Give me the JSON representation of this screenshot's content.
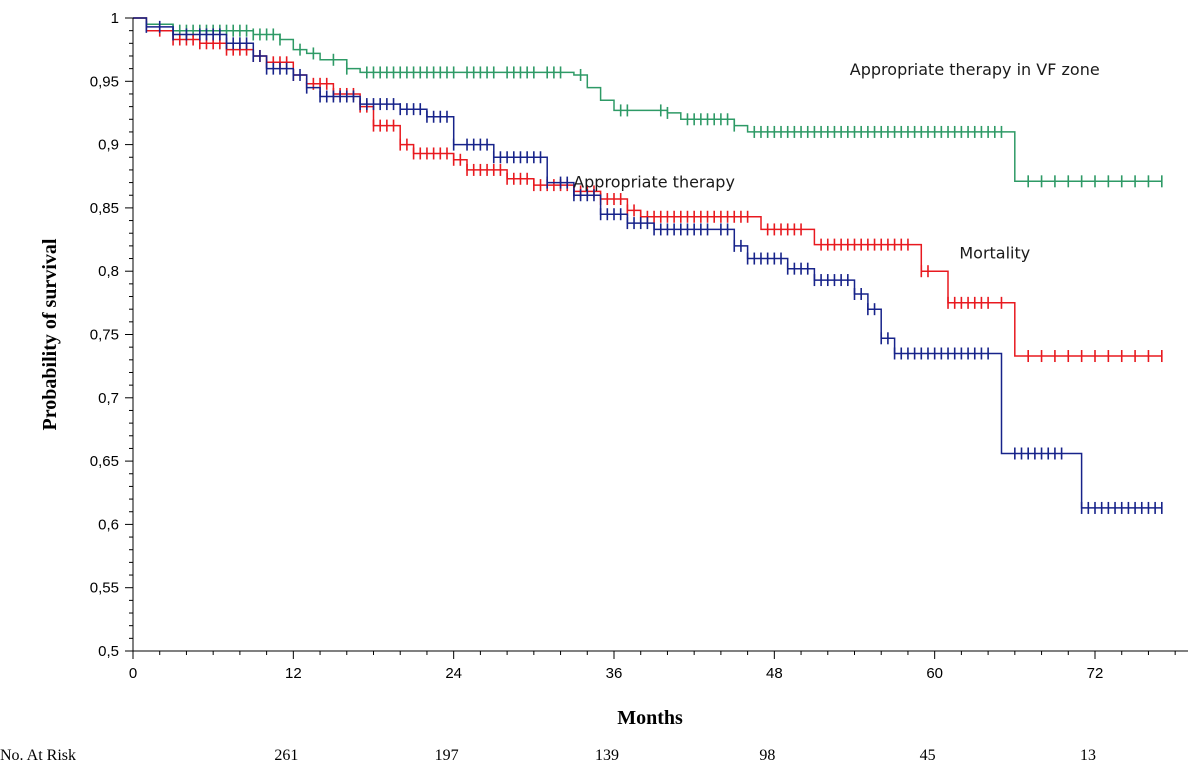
{
  "chart_data": {
    "type": "line",
    "title": "",
    "xlabel": "Months",
    "ylabel": "Probability of survival",
    "xlim": [
      0,
      78
    ],
    "ylim": [
      0.5,
      1
    ],
    "x_ticks": [
      0,
      12,
      24,
      36,
      48,
      60,
      72
    ],
    "x_tick_labels": [
      "0",
      "12",
      "24",
      "36",
      "48",
      "60",
      "72"
    ],
    "y_ticks": [
      0.5,
      0.55,
      0.6,
      0.65,
      0.7,
      0.75,
      0.8,
      0.85,
      0.9,
      0.95,
      1
    ],
    "y_tick_labels": [
      "0,5",
      "0,55",
      "0,6",
      "0,65",
      "0,7",
      "0,75",
      "0,8",
      "0,85",
      "0,9",
      "0,95",
      "1"
    ],
    "grid": false,
    "series": [
      {
        "name": "Appropriate therapy in VF zone",
        "color": "#2e9a66",
        "label_anchor": [
          63,
          0.955
        ],
        "steps": [
          [
            0,
            1
          ],
          [
            1,
            0.995
          ],
          [
            3,
            0.99
          ],
          [
            9,
            0.987
          ],
          [
            11,
            0.983
          ],
          [
            12,
            0.975
          ],
          [
            13,
            0.972
          ],
          [
            14,
            0.967
          ],
          [
            16,
            0.96
          ],
          [
            17,
            0.957
          ],
          [
            33,
            0.955
          ],
          [
            34,
            0.945
          ],
          [
            35,
            0.935
          ],
          [
            36,
            0.927
          ],
          [
            40,
            0.925
          ],
          [
            41,
            0.92
          ],
          [
            45,
            0.915
          ],
          [
            46,
            0.91
          ],
          [
            66,
            0.91
          ],
          [
            66,
            0.871
          ],
          [
            77,
            0.871
          ]
        ],
        "censor_ticks": [
          3,
          3.5,
          4,
          4.5,
          5,
          5.5,
          6,
          6.5,
          7,
          7.5,
          8,
          8.5,
          9,
          9.5,
          10,
          10.5,
          11,
          12.5,
          13.5,
          15,
          16,
          17.5,
          18,
          18.5,
          19,
          19.5,
          20,
          20.5,
          21,
          21.5,
          22,
          22.5,
          23,
          23.5,
          24,
          25,
          25.5,
          26,
          26.5,
          27,
          28,
          28.5,
          29,
          29.5,
          30,
          31,
          31.5,
          32,
          33.5,
          36.5,
          37,
          39.5,
          40,
          41.5,
          42,
          42.5,
          43,
          43.5,
          44,
          44.5,
          45,
          46.5,
          47,
          47.5,
          48,
          48.5,
          49,
          49.5,
          50,
          50.5,
          51,
          51.5,
          52,
          52.5,
          53,
          53.5,
          54,
          54.5,
          55,
          55.5,
          56,
          56.5,
          57,
          57.5,
          58,
          58.5,
          59,
          59.5,
          60,
          60.5,
          61,
          61.5,
          62,
          62.5,
          63,
          63.5,
          64,
          64.5,
          65,
          67,
          68,
          69,
          70,
          71,
          72,
          73,
          74,
          75,
          76,
          77
        ]
      },
      {
        "name": "Appropriate therapy",
        "color": "#e8191f",
        "label_anchor": [
          39,
          0.866
        ],
        "steps": [
          [
            0,
            1
          ],
          [
            1,
            0.99
          ],
          [
            3,
            0.983
          ],
          [
            5,
            0.98
          ],
          [
            7,
            0.975
          ],
          [
            9,
            0.97
          ],
          [
            10,
            0.965
          ],
          [
            12,
            0.955
          ],
          [
            13,
            0.948
          ],
          [
            15,
            0.94
          ],
          [
            17,
            0.93
          ],
          [
            18,
            0.915
          ],
          [
            20,
            0.9
          ],
          [
            21,
            0.893
          ],
          [
            24,
            0.888
          ],
          [
            25,
            0.88
          ],
          [
            28,
            0.873
          ],
          [
            30,
            0.868
          ],
          [
            33,
            0.863
          ],
          [
            35,
            0.857
          ],
          [
            37,
            0.848
          ],
          [
            38,
            0.843
          ],
          [
            47,
            0.833
          ],
          [
            51,
            0.821
          ],
          [
            59,
            0.8
          ],
          [
            60,
            0.8
          ],
          [
            61,
            0.775
          ],
          [
            66,
            0.775
          ],
          [
            66,
            0.733
          ],
          [
            77,
            0.733
          ]
        ],
        "censor_ticks": [
          2,
          3,
          3.5,
          4,
          4.5,
          5,
          5.5,
          6,
          6.5,
          7,
          7.5,
          8,
          8.5,
          9,
          9.5,
          10,
          10.5,
          11,
          11.5,
          12,
          13,
          13.5,
          14,
          14.5,
          15,
          15.5,
          16,
          16.5,
          17,
          17.5,
          18,
          18.5,
          19,
          19.5,
          20,
          20.5,
          21,
          21.5,
          22,
          22.5,
          23,
          23.5,
          24,
          24.5,
          25,
          25.5,
          26,
          26.5,
          27,
          27.5,
          28,
          28.5,
          29,
          29.5,
          30,
          30.5,
          31,
          31.5,
          32,
          32.5,
          33,
          33.5,
          34,
          34.5,
          35,
          35.5,
          36,
          36.5,
          37,
          37.5,
          38,
          38.5,
          39,
          39.5,
          40,
          40.5,
          41,
          41.5,
          42,
          42.5,
          43,
          43.5,
          44,
          44.5,
          45,
          45.5,
          46,
          47.5,
          48,
          48.5,
          49,
          49.5,
          50,
          51.5,
          52,
          52.5,
          53,
          53.5,
          54,
          54.5,
          55,
          55.5,
          56,
          56.5,
          57,
          57.5,
          58,
          59,
          59.5,
          61,
          61.5,
          62,
          62.5,
          63,
          63.5,
          64,
          65,
          67,
          68,
          69,
          70,
          71,
          72,
          73,
          74,
          75,
          76,
          77
        ]
      },
      {
        "name": "Mortality",
        "color": "#17238a",
        "label_anchor": [
          64.5,
          0.81
        ],
        "steps": [
          [
            0,
            1
          ],
          [
            1,
            0.993
          ],
          [
            3,
            0.987
          ],
          [
            7,
            0.98
          ],
          [
            9,
            0.97
          ],
          [
            10,
            0.96
          ],
          [
            12,
            0.955
          ],
          [
            13,
            0.945
          ],
          [
            14,
            0.938
          ],
          [
            17,
            0.932
          ],
          [
            20,
            0.928
          ],
          [
            22,
            0.922
          ],
          [
            24,
            0.9
          ],
          [
            27,
            0.89
          ],
          [
            31,
            0.87
          ],
          [
            33,
            0.86
          ],
          [
            35,
            0.845
          ],
          [
            37,
            0.838
          ],
          [
            39,
            0.833
          ],
          [
            45,
            0.82
          ],
          [
            46,
            0.81
          ],
          [
            49,
            0.802
          ],
          [
            51,
            0.793
          ],
          [
            54,
            0.782
          ],
          [
            55,
            0.77
          ],
          [
            56,
            0.747
          ],
          [
            57,
            0.735
          ],
          [
            64,
            0.735
          ],
          [
            65,
            0.708
          ],
          [
            65,
            0.683
          ],
          [
            65,
            0.656
          ],
          [
            70,
            0.656
          ],
          [
            71,
            0.613
          ],
          [
            77,
            0.613
          ]
        ],
        "censor_ticks": [
          1,
          2,
          3,
          4,
          5,
          5.5,
          6,
          6.5,
          7,
          7.5,
          8,
          8.5,
          9,
          9.5,
          10,
          10.5,
          11,
          11.5,
          12,
          12.5,
          13,
          14,
          14.5,
          15,
          15.5,
          16,
          16.5,
          17,
          17.5,
          18,
          18.5,
          19,
          19.5,
          20,
          20.5,
          21,
          21.5,
          22,
          22.5,
          23,
          23.5,
          24,
          25,
          25.5,
          26,
          26.5,
          27,
          27.5,
          28,
          28.5,
          29,
          29.5,
          30,
          30.5,
          31,
          32,
          32.5,
          33,
          33.5,
          34,
          34.5,
          35,
          35.5,
          36,
          36.5,
          37,
          37.5,
          38,
          38.5,
          39,
          39.5,
          40,
          40.5,
          41,
          41.5,
          42,
          42.5,
          43,
          44,
          44.5,
          45,
          45.5,
          46,
          46.5,
          47,
          47.5,
          48,
          48.5,
          49,
          49.5,
          50,
          50.5,
          51,
          51.5,
          52,
          52.5,
          53,
          53.5,
          54,
          54.5,
          55,
          55.5,
          56,
          56.5,
          57,
          57.5,
          58,
          58.5,
          59,
          59.5,
          60,
          60.5,
          61,
          61.5,
          62,
          62.5,
          63,
          63.5,
          64,
          66,
          66.5,
          67,
          67.5,
          68,
          68.5,
          69,
          69.5,
          71,
          71.5,
          72,
          72.5,
          73,
          73.5,
          74,
          74.5,
          75,
          75.5,
          76,
          76.5,
          77
        ]
      }
    ],
    "at_risk": {
      "label": "No. At Risk",
      "months": [
        12,
        24,
        36,
        48,
        60,
        72
      ],
      "values": [
        "261",
        "197",
        "139",
        "98",
        "45",
        "13"
      ]
    }
  }
}
